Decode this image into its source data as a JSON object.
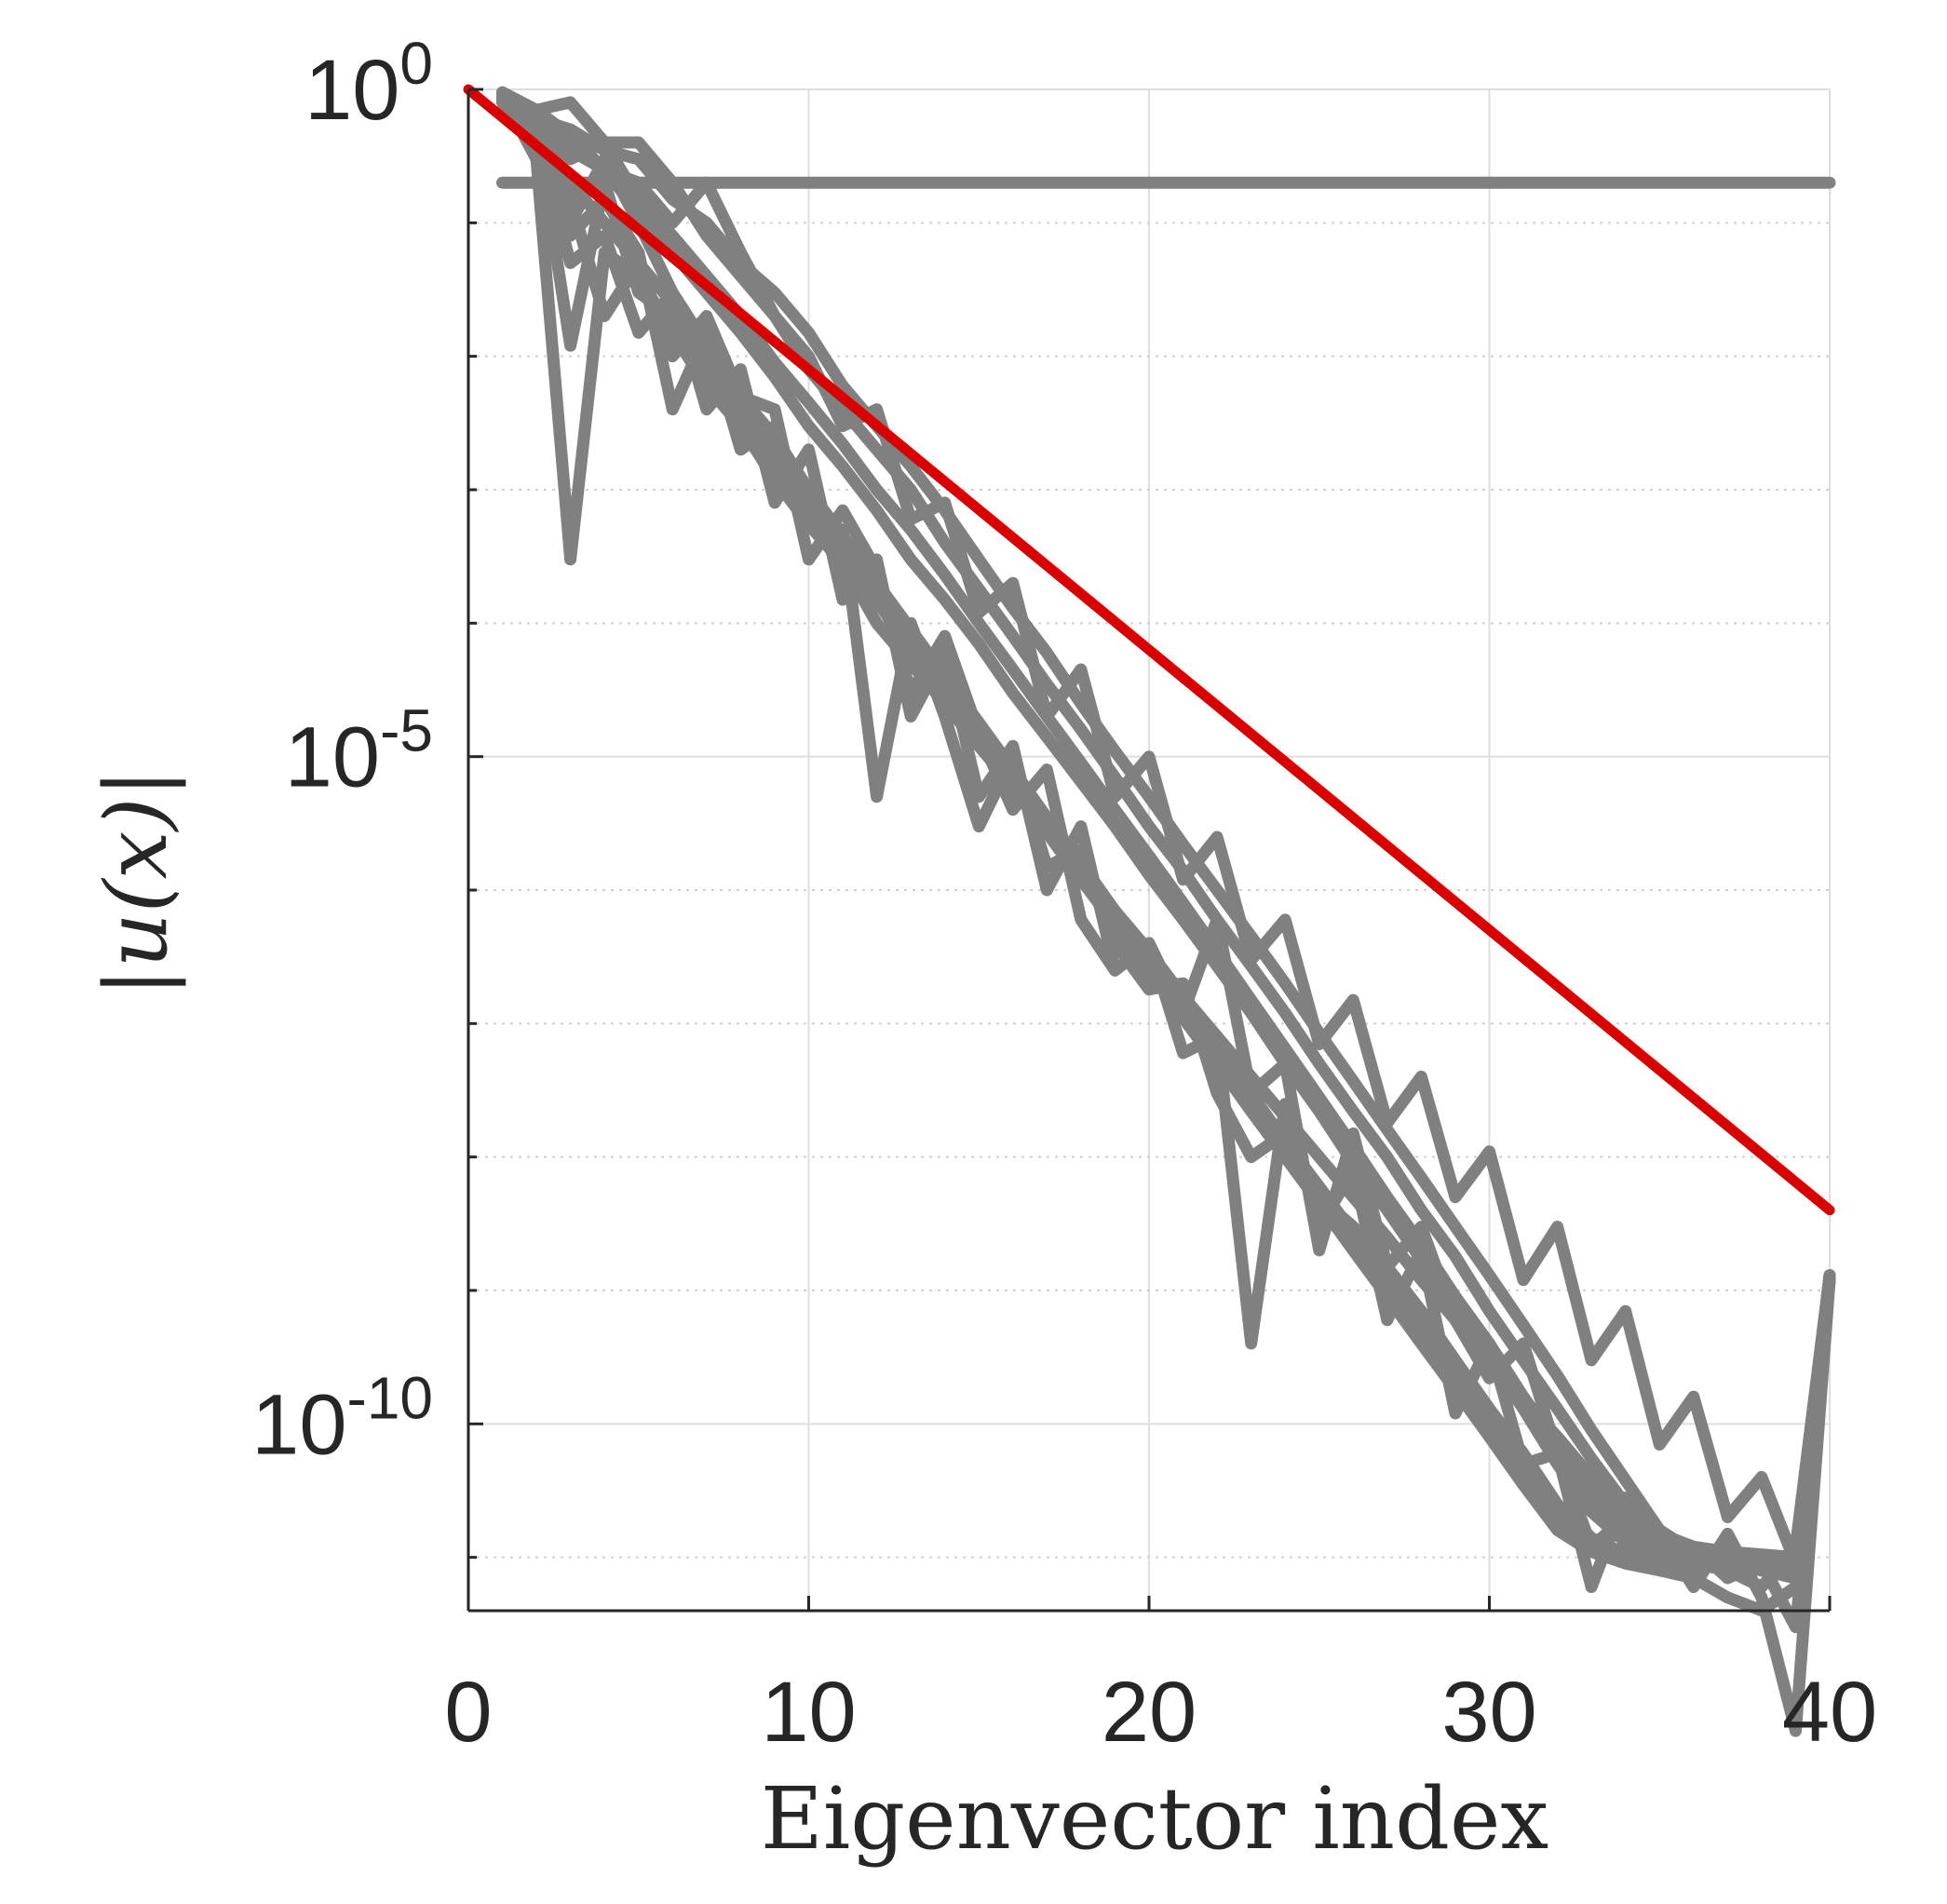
{
  "chart_data": {
    "type": "line",
    "title": "",
    "xlabel": "Eigenvector index",
    "ylabel": "|u(x)|",
    "xlim": [
      0,
      40
    ],
    "ylim": [
      1e-11,
      1
    ],
    "yscale": "log",
    "grid": true,
    "x_ticks": [
      "0",
      "10",
      "20",
      "30",
      "40"
    ],
    "y_ticks": [
      {
        "base": "10",
        "exp": "0",
        "value": 1
      },
      {
        "base": "10",
        "exp": "-5",
        "value": 1e-05
      },
      {
        "base": "10",
        "exp": "-10",
        "value": 1e-10
      }
    ],
    "colors": {
      "series": "#808080",
      "reference": "#d90000",
      "axes": "#262626",
      "grid": "#dedede"
    },
    "reference_line": {
      "x": [
        0,
        40
      ],
      "y": [
        1,
        4e-09
      ]
    },
    "series": [
      {
        "x": [
          1,
          40
        ],
        "y": [
          0.2,
          0.2
        ]
      },
      {
        "x": [
          1,
          2,
          3,
          4,
          5,
          6,
          7,
          8,
          9,
          10,
          11,
          12,
          13,
          14,
          15,
          16,
          17,
          18,
          19,
          20,
          21,
          22,
          23,
          24,
          25,
          26,
          27,
          28,
          29,
          30,
          31,
          32,
          33,
          34,
          35,
          36,
          37,
          38,
          39,
          40
        ],
        "y": [
          0.9,
          0.3,
          0.0003,
          0.06,
          0.04,
          0.015,
          0.006,
          0.003,
          0.0012,
          0.00055,
          0.00028,
          0.0001,
          5e-05,
          2.5e-05,
          1.2e-05,
          6e-06,
          3e-06,
          1.5e-06,
          7e-07,
          3.5e-07,
          1.6e-07,
          8e-08,
          4e-08,
          2e-08,
          1e-08,
          5e-09,
          2.5e-09,
          1.2e-09,
          6e-10,
          3e-10,
          1.5e-10,
          8e-11,
          4e-11,
          2e-11,
          1.5e-11,
          1.2e-11,
          1.1e-11,
          1.05e-11,
          1e-11,
          1.2e-09
        ]
      },
      {
        "x": [
          1,
          2,
          3,
          4,
          5,
          6,
          7,
          8,
          9,
          10,
          11,
          12,
          13,
          14,
          15,
          16,
          17,
          18,
          19,
          20,
          21,
          22,
          23,
          24,
          25,
          26,
          27,
          28,
          29,
          30,
          31,
          32,
          33,
          34,
          35,
          36,
          37,
          38,
          39,
          40
        ],
        "y": [
          0.8,
          0.5,
          0.012,
          0.2,
          0.03,
          0.02,
          0.008,
          0.004,
          0.002,
          0.0009,
          0.0004,
          0.0002,
          8e-05,
          3.5e-05,
          1.5e-05,
          7e-06,
          3e-06,
          1.4e-06,
          6e-07,
          2.8e-07,
          1.3e-07,
          6e-08,
          2.7e-08,
          1.2e-08,
          5.5e-09,
          2.5e-09,
          1.1e-09,
          5e-10,
          2.2e-10,
          1e-10,
          4.5e-11,
          2e-11,
          1.2e-11,
          1e-11,
          1.2e-11,
          1e-11,
          9e-12,
          8e-12,
          1e-11,
          1.3e-09
        ]
      },
      {
        "x": [
          1,
          2,
          3,
          4,
          5,
          6,
          7,
          8,
          9,
          10,
          11,
          12,
          13,
          14,
          15,
          16,
          17,
          18,
          19,
          20,
          21,
          22,
          23,
          24,
          25,
          26,
          27,
          28,
          29,
          30,
          31,
          32,
          33,
          34,
          35,
          36,
          37,
          38,
          39,
          40
        ],
        "y": [
          0.95,
          0.55,
          0.1,
          0.3,
          0.1,
          0.03,
          0.012,
          0.005,
          0.0025,
          0.001,
          0.00045,
          0.0002,
          9e-05,
          4e-05,
          1.8e-05,
          8e-06,
          3.5e-06,
          1.6e-06,
          7e-07,
          3.2e-07,
          1.4e-07,
          6.5e-08,
          3e-08,
          1.3e-08,
          6e-09,
          2.7e-09,
          1.2e-09,
          5.5e-10,
          2.5e-10,
          1.1e-10,
          5e-11,
          2.3e-11,
          1.3e-11,
          1.1e-11,
          1e-11,
          9e-12,
          8e-12,
          6e-12,
          1.2e-11,
          1.3e-09
        ]
      },
      {
        "x": [
          1,
          2,
          3,
          4,
          5,
          6,
          7,
          8,
          9,
          10,
          11,
          12,
          13,
          14,
          15,
          16,
          17,
          18,
          19,
          20,
          21,
          22,
          23,
          24,
          25,
          26,
          27,
          28,
          29,
          30,
          31,
          32,
          33,
          34,
          35,
          36,
          37,
          38,
          39,
          40
        ],
        "y": [
          0.9,
          0.6,
          0.15,
          0.02,
          0.05,
          0.025,
          0.01,
          0.006,
          0.0015,
          0.0008,
          0.0003,
          0.00015,
          6e-05,
          3e-05,
          1.3e-05,
          6e-06,
          2.7e-06,
          1.2e-06,
          5.5e-07,
          2.5e-07,
          1.1e-07,
          5e-08,
          2.2e-08,
          1e-08,
          4.5e-09,
          2e-09,
          9e-10,
          4e-10,
          1.8e-10,
          8e-11,
          3.5e-11,
          1.6e-11,
          1.1e-11,
          9e-12,
          8e-12,
          7e-12,
          5e-12,
          4e-12,
          6e-12,
          1.2e-09
        ]
      },
      {
        "x": [
          1,
          2,
          3,
          4,
          5,
          6,
          7,
          8,
          9,
          10,
          11,
          12,
          13,
          14,
          15,
          16,
          17,
          18,
          19,
          20,
          21,
          22,
          23,
          24,
          25,
          26,
          27,
          28,
          29,
          30,
          31,
          32,
          33,
          34,
          35,
          36,
          37,
          38,
          39,
          40
        ],
        "y": [
          0.85,
          0.4,
          0.08,
          0.15,
          0.06,
          0.004,
          0.015,
          0.002,
          0.003,
          0.0006,
          0.0005,
          5e-06,
          0.0001,
          2e-05,
          3e-06,
          1e-05,
          1.5e-06,
          2e-06,
          4e-07,
          1.8e-07,
          2e-07,
          3e-08,
          1e-08,
          1.5e-08,
          5e-09,
          3e-09,
          1.5e-09,
          7e-10,
          3e-10,
          1.3e-10,
          6e-11,
          2.5e-11,
          1.4e-11,
          1e-11,
          9e-12,
          8e-12,
          1e-11,
          9e-12,
          7e-12,
          1.3e-09
        ]
      },
      {
        "x": [
          1,
          2,
          3,
          4,
          5,
          6,
          7,
          8,
          9,
          10,
          11,
          12,
          13,
          14,
          15,
          16,
          17,
          18,
          19,
          20,
          21,
          22,
          23,
          24,
          25,
          26,
          27,
          28,
          29,
          30,
          31,
          32,
          33,
          34,
          35,
          36,
          37,
          38,
          39,
          40
        ],
        "y": [
          0.9,
          0.45,
          0.05,
          0.08,
          0.015,
          0.03,
          0.004,
          0.008,
          0.0008,
          0.002,
          0.00015,
          0.0003,
          2e-05,
          6e-05,
          5e-06,
          1.2e-05,
          1e-06,
          3e-06,
          2.5e-07,
          4e-07,
          6e-08,
          8e-08,
          4e-10,
          2.5e-08,
          3e-09,
          8e-09,
          6e-10,
          2e-09,
          1.2e-10,
          4e-10,
          5e-11,
          6e-11,
          1.2e-11,
          2e-11,
          8e-12,
          1.2e-11,
          7e-12,
          9e-12,
          3e-12,
          1.3e-09
        ]
      },
      {
        "x": [
          1,
          2,
          3,
          4,
          5,
          6,
          7,
          8,
          9,
          10,
          11,
          12,
          13,
          14,
          15,
          16,
          17,
          18,
          19,
          20,
          21,
          22,
          23,
          24,
          25,
          26,
          27,
          28,
          29,
          30,
          31,
          32,
          33,
          34,
          35,
          36,
          37,
          38,
          39,
          40
        ],
        "y": [
          0.9,
          0.5,
          0.2,
          0.1,
          0.05,
          0.01,
          0.02,
          0.005,
          0.004,
          0.0003,
          0.0007,
          0.00025,
          3e-05,
          8e-05,
          1.5e-05,
          4e-06,
          8e-06,
          6e-07,
          2.5e-07,
          4e-07,
          1.2e-07,
          6e-07,
          3e-08,
          5e-08,
          2e-09,
          1.5e-08,
          1.5e-09,
          3e-09,
          6e-10,
          2.2e-10,
          4e-10,
          6e-11,
          6e-12,
          2.8e-11,
          1.5e-11,
          6e-12,
          1.5e-11,
          5e-12,
          5e-13,
          1.2e-09
        ]
      },
      {
        "x": [
          1,
          2,
          3,
          4,
          5,
          6,
          7,
          8,
          9,
          10,
          11,
          12,
          13,
          14,
          15,
          16,
          17,
          18,
          19,
          20,
          21,
          22,
          23,
          24,
          25,
          26,
          27,
          28,
          29,
          30,
          31,
          32,
          33,
          34,
          35,
          36,
          37,
          38,
          39,
          40
        ],
        "y": [
          0.7,
          0.65,
          0.35,
          0.25,
          0.12,
          0.06,
          0.03,
          0.015,
          0.007,
          0.003,
          0.0015,
          0.0007,
          0.0003,
          0.00015,
          7e-05,
          3e-05,
          1.4e-05,
          6.5e-06,
          3e-06,
          1.3e-06,
          6e-07,
          2.7e-07,
          1.2e-07,
          5e-08,
          2.2e-08,
          9e-09,
          4e-09,
          1.7e-09,
          7e-10,
          3e-10,
          1.3e-10,
          5e-11,
          2.2e-11,
          1.3e-11,
          1.1e-11,
          1e-11,
          9e-12,
          8e-12,
          8e-12,
          1.3e-09
        ]
      },
      {
        "x": [
          1,
          2,
          3,
          4,
          5,
          6,
          7,
          8,
          9,
          10,
          11,
          12,
          13,
          14,
          15,
          16,
          17,
          18,
          19,
          20,
          21,
          22,
          23,
          24,
          25,
          26,
          27,
          28,
          29,
          30,
          31,
          32,
          33,
          34,
          35,
          36,
          37,
          38,
          39,
          40
        ],
        "y": [
          0.8,
          0.7,
          0.8,
          0.4,
          0.4,
          0.2,
          0.08,
          0.04,
          0.02,
          0.008,
          0.004,
          0.002,
          0.001,
          0.0004,
          0.00018,
          8e-05,
          3.5e-05,
          1.6e-05,
          7e-06,
          3e-06,
          1.4e-06,
          6e-07,
          2.7e-07,
          1.2e-07,
          5e-08,
          2.2e-08,
          1e-08,
          4e-09,
          1.8e-09,
          7e-10,
          3e-10,
          1.3e-10,
          5.5e-11,
          2.5e-11,
          1.2e-11,
          1e-11,
          9e-12,
          8e-12,
          7e-12,
          1.3e-09
        ]
      },
      {
        "x": [
          1,
          2,
          3,
          4,
          5,
          6,
          7,
          8,
          9,
          10,
          11,
          12,
          13,
          14,
          15,
          16,
          17,
          18,
          19,
          20,
          21,
          22,
          23,
          24,
          25,
          26,
          27,
          28,
          29,
          30,
          31,
          32,
          33,
          34,
          35,
          36,
          37,
          38,
          39,
          40
        ],
        "y": [
          0.9,
          0.6,
          0.5,
          0.35,
          0.3,
          0.15,
          0.1,
          0.05,
          0.03,
          0.015,
          0.006,
          0.003,
          0.0015,
          0.0007,
          0.0003,
          0.00013,
          6e-05,
          2.5e-05,
          1.1e-05,
          5e-06,
          2.2e-06,
          1e-06,
          4.5e-07,
          2e-07,
          8.5e-08,
          3.7e-08,
          1.6e-08,
          7e-09,
          3e-09,
          1.3e-09,
          5.5e-10,
          2.3e-10,
          9e-11,
          3.8e-11,
          1.6e-11,
          1.1e-11,
          9e-12,
          8e-12,
          8e-12,
          1.3e-09
        ]
      },
      {
        "x": [
          1,
          2,
          3,
          4,
          5,
          6,
          7,
          8,
          9,
          10,
          11,
          12,
          13,
          14,
          15,
          16,
          17,
          18,
          19,
          20,
          21,
          22,
          23,
          24,
          25,
          26,
          27,
          28,
          29,
          30,
          31,
          32,
          33,
          34,
          35,
          36,
          37,
          38,
          39,
          40
        ],
        "y": [
          0.95,
          0.7,
          0.45,
          0.25,
          0.2,
          0.1,
          0.2,
          0.06,
          0.02,
          0.01,
          0.003,
          0.004,
          0.0006,
          0.0008,
          0.00012,
          0.0002,
          2e-05,
          4.5e-05,
          5e-06,
          1e-05,
          1.2e-06,
          2.5e-06,
          3e-07,
          6e-07,
          7e-08,
          1.5e-07,
          1.8e-08,
          4e-08,
          5e-09,
          1.1e-08,
          1.2e-09,
          3e-09,
          3e-10,
          7e-10,
          7e-11,
          1.6e-10,
          2e-11,
          4e-11,
          9e-12,
          1.2e-09
        ]
      },
      {
        "x": [
          1,
          2,
          3,
          4,
          5,
          6,
          7,
          8,
          9,
          10,
          11,
          12,
          13,
          14,
          15,
          16,
          17,
          18,
          19,
          20,
          21,
          22,
          23,
          24,
          25,
          26,
          27,
          28,
          29,
          30,
          31,
          32,
          33,
          34,
          35,
          36,
          37,
          38,
          39,
          40
        ],
        "y": [
          0.85,
          0.55,
          0.3,
          0.4,
          0.15,
          0.08,
          0.04,
          0.02,
          0.009,
          0.0045,
          0.0022,
          0.001,
          0.0005,
          0.00023,
          0.0001,
          4.5e-05,
          2e-05,
          9e-06,
          4e-06,
          1.8e-06,
          8e-07,
          3.5e-07,
          1.5e-07,
          6.5e-08,
          2.8e-08,
          1.2e-08,
          5e-09,
          2.2e-09,
          9e-10,
          4e-10,
          1.6e-10,
          7e-11,
          3e-11,
          1.4e-11,
          1.1e-11,
          1e-11,
          9e-12,
          8e-12,
          7e-12,
          1.2e-09
        ]
      }
    ]
  }
}
